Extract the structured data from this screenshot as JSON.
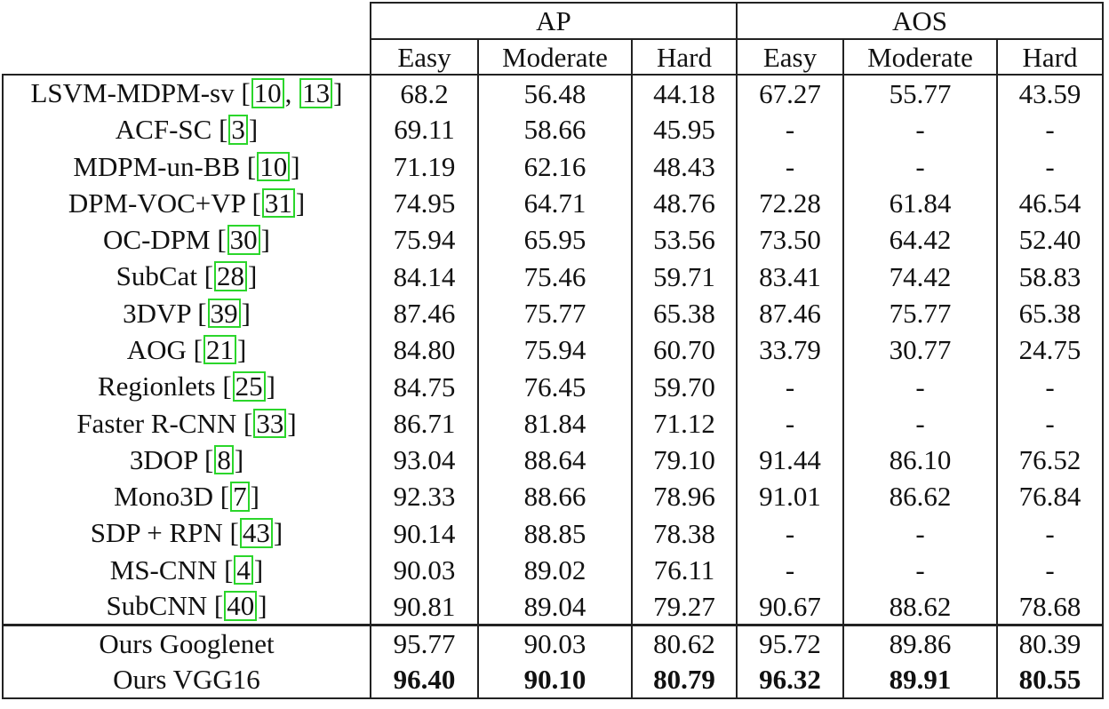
{
  "header": {
    "group_ap": "AP",
    "group_aos": "AOS",
    "sub": [
      "Easy",
      "Moderate",
      "Hard",
      "Easy",
      "Moderate",
      "Hard"
    ]
  },
  "rows": [
    {
      "method": "LSVM-MDPM-sv",
      "cites": [
        "10",
        "13"
      ],
      "values": [
        "68.2",
        "56.48",
        "44.18",
        "67.27",
        "55.77",
        "43.59"
      ]
    },
    {
      "method": "ACF-SC",
      "cites": [
        "3"
      ],
      "values": [
        "69.11",
        "58.66",
        "45.95",
        "-",
        "-",
        "-"
      ]
    },
    {
      "method": "MDPM-un-BB",
      "cites": [
        "10"
      ],
      "values": [
        "71.19",
        "62.16",
        "48.43",
        "-",
        "-",
        "-"
      ]
    },
    {
      "method": "DPM-VOC+VP",
      "cites": [
        "31"
      ],
      "values": [
        "74.95",
        "64.71",
        "48.76",
        "72.28",
        "61.84",
        "46.54"
      ]
    },
    {
      "method": "OC-DPM",
      "cites": [
        "30"
      ],
      "values": [
        "75.94",
        "65.95",
        "53.56",
        "73.50",
        "64.42",
        "52.40"
      ]
    },
    {
      "method": "SubCat",
      "cites": [
        "28"
      ],
      "values": [
        "84.14",
        "75.46",
        "59.71",
        "83.41",
        "74.42",
        "58.83"
      ]
    },
    {
      "method": "3DVP",
      "cites": [
        "39"
      ],
      "values": [
        "87.46",
        "75.77",
        "65.38",
        "87.46",
        "75.77",
        "65.38"
      ]
    },
    {
      "method": "AOG",
      "cites": [
        "21"
      ],
      "values": [
        "84.80",
        "75.94",
        "60.70",
        "33.79",
        "30.77",
        "24.75"
      ]
    },
    {
      "method": "Regionlets",
      "cites": [
        "25"
      ],
      "values": [
        "84.75",
        "76.45",
        "59.70",
        "-",
        "-",
        "-"
      ]
    },
    {
      "method": "Faster R-CNN",
      "cites": [
        "33"
      ],
      "values": [
        "86.71",
        "81.84",
        "71.12",
        "-",
        "-",
        "-"
      ]
    },
    {
      "method": "3DOP",
      "cites": [
        "8"
      ],
      "values": [
        "93.04",
        "88.64",
        "79.10",
        "91.44",
        "86.10",
        "76.52"
      ]
    },
    {
      "method": "Mono3D",
      "cites": [
        "7"
      ],
      "values": [
        "92.33",
        "88.66",
        "78.96",
        "91.01",
        "86.62",
        "76.84"
      ]
    },
    {
      "method": "SDP + RPN",
      "cites": [
        "43"
      ],
      "values": [
        "90.14",
        "88.85",
        "78.38",
        "-",
        "-",
        "-"
      ]
    },
    {
      "method": "MS-CNN",
      "cites": [
        "4"
      ],
      "values": [
        "90.03",
        "89.02",
        "76.11",
        "-",
        "-",
        "-"
      ]
    },
    {
      "method": "SubCNN",
      "cites": [
        "40"
      ],
      "values": [
        "90.81",
        "89.04",
        "79.27",
        "90.67",
        "88.62",
        "78.68"
      ]
    }
  ],
  "ours": [
    {
      "method": "Ours Googlenet",
      "values": [
        "95.77",
        "90.03",
        "80.62",
        "95.72",
        "89.86",
        "80.39"
      ],
      "bold": false
    },
    {
      "method": "Ours VGG16",
      "values": [
        "96.40",
        "90.10",
        "80.79",
        "96.32",
        "89.91",
        "80.55"
      ],
      "bold": true
    }
  ],
  "colors": {
    "citation_box": "#2bd62b",
    "rule": "#222222",
    "text": "#111111"
  }
}
